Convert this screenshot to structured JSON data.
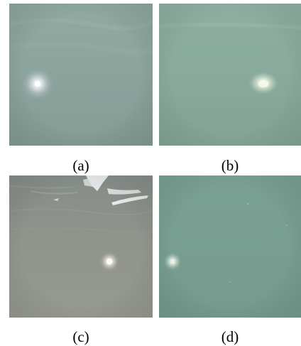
{
  "panels": [
    {
      "id": "a",
      "caption": "(a)",
      "colors": {
        "base_top": "#8fa8a1",
        "base_bottom": "#869d95",
        "light": "#ffffff",
        "glow": "#b7c6c4"
      }
    },
    {
      "id": "b",
      "caption": "(b)",
      "colors": {
        "base_top": "#8cae9f",
        "base_bottom": "#84a596",
        "light": "#f5f8e6",
        "glow": "#c3d6c9"
      }
    },
    {
      "id": "c",
      "caption": "(c)",
      "colors": {
        "base_top": "#8a908a",
        "base_bottom": "#959990",
        "light": "#fffaf0",
        "glow": "#c5c5bb",
        "surface": "#e8ecef"
      }
    },
    {
      "id": "d",
      "caption": "(d)",
      "colors": {
        "base_top": "#7a9e94",
        "base_bottom": "#779a8f",
        "light": "#e8f0e5",
        "glow": "#a8c0b7"
      }
    }
  ]
}
